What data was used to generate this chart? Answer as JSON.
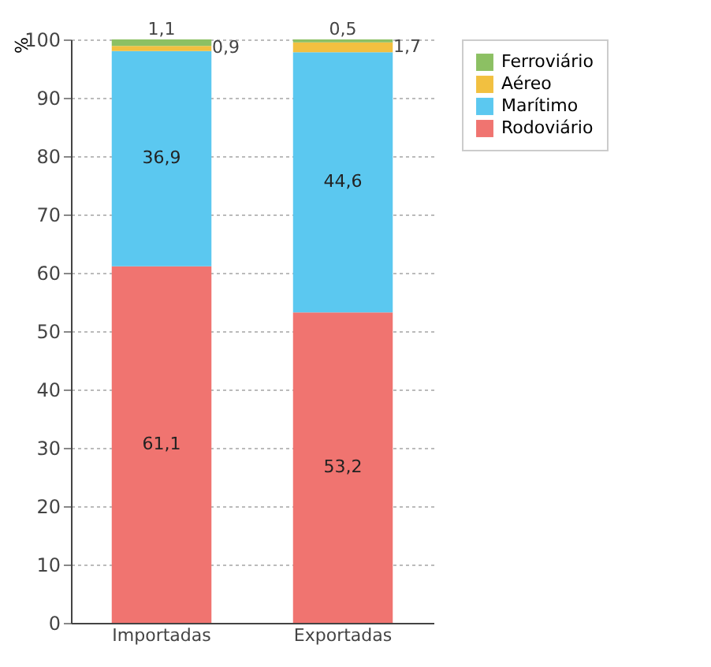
{
  "chart_data": {
    "type": "bar",
    "stacked": true,
    "ylabel": "%",
    "categories": [
      "Importadas",
      "Exportadas"
    ],
    "series": [
      {
        "name": "Rodoviário",
        "color": "#f07470",
        "values": [
          61.1,
          53.2
        ],
        "value_labels": [
          "61,1",
          "53,2"
        ]
      },
      {
        "name": "Marítimo",
        "color": "#5bc8f0",
        "values": [
          36.9,
          44.6
        ],
        "value_labels": [
          "36,9",
          "44,6"
        ]
      },
      {
        "name": "Aéreo",
        "color": "#f2c040",
        "values": [
          0.9,
          1.7
        ],
        "value_labels": [
          "0,9",
          "1,7"
        ]
      },
      {
        "name": "Ferroviário",
        "color": "#8cc063",
        "values": [
          1.1,
          0.5
        ],
        "value_labels": [
          "1,1",
          "0,5"
        ]
      }
    ],
    "ylim": [
      0,
      100
    ],
    "yticks": [
      0,
      10,
      20,
      30,
      40,
      50,
      60,
      70,
      80,
      90,
      100
    ],
    "grid": "y",
    "legend": "right"
  }
}
